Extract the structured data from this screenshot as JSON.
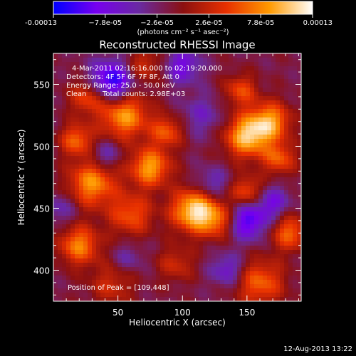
{
  "chart_data": {
    "type": "heatmap",
    "title": "Reconstructed RHESSI Image",
    "xlabel": "Heliocentric X (arcsec)",
    "ylabel": "Heliocentric Y (arcsec)",
    "xlim": [
      0,
      192
    ],
    "ylim": [
      375,
      575
    ],
    "xticks": [
      50,
      100,
      150
    ],
    "yticks": [
      400,
      450,
      500,
      550
    ],
    "colorbar": {
      "min": -0.00013,
      "max": 0.00013,
      "tick_labels": [
        "-0.00013",
        "−7.8e-05",
        "−2.6e-05",
        "2.6e-05",
        "7.8e-05",
        "0.00013"
      ],
      "units_label": "(photons cm⁻² s⁻¹ asec⁻²)",
      "colors": [
        "#0000ff",
        "#7700ee",
        "#6a2aa0",
        "#8b1010",
        "#e83000",
        "#ff9a00",
        "#ffffff"
      ]
    },
    "annotations": {
      "time_range": "4-Mar-2011 02:16:16.000 to 02:19:20.000",
      "detectors": "Detectors: 4F 5F 6F 7F 8F, Att 0",
      "energy_range": "Energy Range: 25.0 - 50.0 keV",
      "method": "Clean",
      "total_counts": "Total counts: 2.98E+03",
      "peak": "Position of Peak = [109,448]"
    },
    "timestamp": "12-Aug-2013 13:22",
    "intensity_components": [
      {
        "x": 55,
        "y": 525,
        "v": 0.8,
        "s": 13
      },
      {
        "x": 27,
        "y": 540,
        "v": 0.55,
        "s": 10
      },
      {
        "x": 18,
        "y": 505,
        "v": 0.6,
        "s": 9
      },
      {
        "x": 30,
        "y": 470,
        "v": 0.75,
        "s": 13
      },
      {
        "x": 20,
        "y": 420,
        "v": 0.7,
        "s": 11
      },
      {
        "x": 60,
        "y": 445,
        "v": 0.55,
        "s": 12
      },
      {
        "x": 75,
        "y": 483,
        "v": 0.8,
        "s": 11
      },
      {
        "x": 88,
        "y": 512,
        "v": 0.55,
        "s": 9
      },
      {
        "x": 109,
        "y": 448,
        "v": 1.0,
        "s": 12
      },
      {
        "x": 128,
        "y": 440,
        "v": 0.55,
        "s": 10
      },
      {
        "x": 150,
        "y": 508,
        "v": 0.9,
        "s": 12
      },
      {
        "x": 168,
        "y": 520,
        "v": 0.75,
        "s": 11
      },
      {
        "x": 145,
        "y": 545,
        "v": 0.5,
        "s": 9
      },
      {
        "x": 150,
        "y": 463,
        "v": 0.55,
        "s": 9
      },
      {
        "x": 175,
        "y": 490,
        "v": 0.55,
        "s": 9
      },
      {
        "x": 183,
        "y": 430,
        "v": 0.6,
        "s": 10
      },
      {
        "x": 160,
        "y": 390,
        "v": 0.6,
        "s": 13
      },
      {
        "x": 95,
        "y": 405,
        "v": 0.35,
        "s": 10
      },
      {
        "x": 45,
        "y": 388,
        "v": 0.35,
        "s": 12
      },
      {
        "x": 70,
        "y": 565,
        "v": 0.4,
        "s": 10
      },
      {
        "x": 45,
        "y": 552,
        "v": -0.85,
        "s": 12
      },
      {
        "x": 100,
        "y": 565,
        "v": -0.5,
        "s": 10
      },
      {
        "x": 150,
        "y": 440,
        "v": -0.7,
        "s": 11
      },
      {
        "x": 135,
        "y": 400,
        "v": -0.45,
        "s": 9
      },
      {
        "x": 170,
        "y": 455,
        "v": -0.45,
        "s": 9
      },
      {
        "x": 40,
        "y": 493,
        "v": -0.35,
        "s": 8
      },
      {
        "x": 123,
        "y": 470,
        "v": -0.35,
        "s": 9
      },
      {
        "x": 5,
        "y": 450,
        "v": -0.3,
        "s": 9
      },
      {
        "x": 115,
        "y": 525,
        "v": -0.3,
        "s": 12
      },
      {
        "x": 58,
        "y": 410,
        "v": -0.25,
        "s": 8
      }
    ],
    "background_level": -0.12
  }
}
